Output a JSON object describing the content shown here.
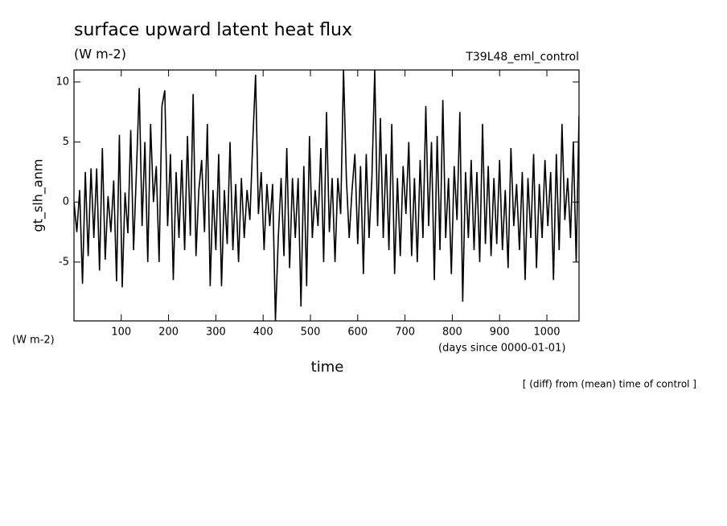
{
  "chart_data": {
    "type": "line",
    "title": "surface upward latent heat flux",
    "subtitle": "(W m-2)",
    "run_label": "T39L48_eml_control",
    "y_label": "gt_slh_anm",
    "y_unit": "(W m-2)",
    "x_label": "time",
    "x_unit": "(days since 0000-01-01)",
    "footnote": "[ (diff) from (mean) time of control ]",
    "color": "#000000",
    "xlim": [
      0,
      1068
    ],
    "ylim": [
      -9.9,
      11
    ],
    "xticks": [
      100,
      200,
      300,
      400,
      500,
      600,
      700,
      800,
      900,
      1000
    ],
    "yticks": [
      -5,
      0,
      5,
      10
    ],
    "x": [
      0,
      6,
      12,
      18,
      24,
      30,
      36,
      42,
      48,
      54,
      60,
      66,
      72,
      78,
      84,
      90,
      96,
      102,
      108,
      114,
      120,
      126,
      132,
      138,
      144,
      150,
      156,
      162,
      168,
      174,
      180,
      186,
      192,
      198,
      204,
      210,
      216,
      222,
      228,
      234,
      240,
      246,
      252,
      258,
      264,
      270,
      276,
      282,
      288,
      294,
      300,
      306,
      312,
      318,
      324,
      330,
      336,
      342,
      348,
      354,
      360,
      366,
      372,
      378,
      384,
      390,
      396,
      402,
      408,
      414,
      420,
      426,
      432,
      438,
      444,
      450,
      456,
      462,
      468,
      474,
      480,
      486,
      492,
      498,
      504,
      510,
      516,
      522,
      528,
      534,
      540,
      546,
      552,
      558,
      564,
      570,
      576,
      582,
      588,
      594,
      600,
      606,
      612,
      618,
      624,
      630,
      636,
      642,
      648,
      654,
      660,
      666,
      672,
      678,
      684,
      690,
      696,
      702,
      708,
      714,
      720,
      726,
      732,
      738,
      744,
      750,
      756,
      762,
      768,
      774,
      780,
      786,
      792,
      798,
      804,
      810,
      816,
      822,
      828,
      834,
      840,
      846,
      852,
      858,
      864,
      870,
      876,
      882,
      888,
      894,
      900,
      906,
      912,
      918,
      924,
      930,
      936,
      942,
      948,
      954,
      960,
      966,
      972,
      978,
      984,
      990,
      996,
      1002,
      1008,
      1014,
      1020,
      1026,
      1032,
      1038,
      1044,
      1050,
      1056,
      1062,
      1068
    ],
    "values": [
      0,
      -2.5,
      1,
      -6.8,
      2.5,
      -4.5,
      2.8,
      -3,
      2.8,
      -5.7,
      4.5,
      -4.8,
      0.5,
      -2.5,
      1.8,
      -6.6,
      5.6,
      -7.1,
      0.8,
      -2.6,
      6,
      -4,
      2.5,
      9.5,
      -2,
      5,
      -5,
      6.5,
      0,
      3,
      -5,
      8,
      9.3,
      -2,
      4,
      -6.5,
      2.5,
      -3,
      3.5,
      -4,
      5.5,
      -2.8,
      9,
      -4.5,
      1,
      3.5,
      -2.5,
      6.5,
      -7,
      1,
      -4,
      4,
      -7,
      1,
      -3.5,
      5,
      -4,
      1.5,
      -5,
      2,
      -3,
      1,
      -1.5,
      5,
      10.6,
      -1,
      2.5,
      -4,
      1.5,
      -2,
      1.5,
      -9.9,
      -3,
      2,
      -4.5,
      4.5,
      -5.5,
      2,
      -3,
      2,
      -8.7,
      3,
      -7,
      5.5,
      -3,
      1,
      -2,
      4.5,
      -5,
      7.5,
      -2.5,
      2,
      -5,
      2,
      -1,
      11,
      2,
      -3,
      1,
      4,
      -3.5,
      3,
      -6,
      4,
      -3,
      2,
      11,
      -2,
      7,
      -3,
      4,
      -4,
      6.5,
      -6,
      2,
      -4.5,
      3,
      -1,
      5,
      -4.5,
      2,
      -5,
      3.5,
      -3,
      8,
      -2,
      5,
      -6.5,
      5.5,
      -4,
      8.5,
      -3,
      2,
      -6,
      3,
      -1.5,
      7.5,
      -8.3,
      2.5,
      -3,
      3.5,
      -4,
      2.5,
      -5,
      6.5,
      -3.5,
      3,
      -4.5,
      2,
      -3.5,
      3.5,
      -4,
      1,
      -5.5,
      4.5,
      -2,
      1.5,
      -4,
      2.5,
      -6.5,
      2,
      -3,
      4,
      -5.5,
      1.5,
      -3,
      3.5,
      -2,
      2.5,
      -6.5,
      4,
      -4,
      6.5,
      -1.5,
      2,
      -3,
      5,
      -5,
      7.2
    ]
  }
}
